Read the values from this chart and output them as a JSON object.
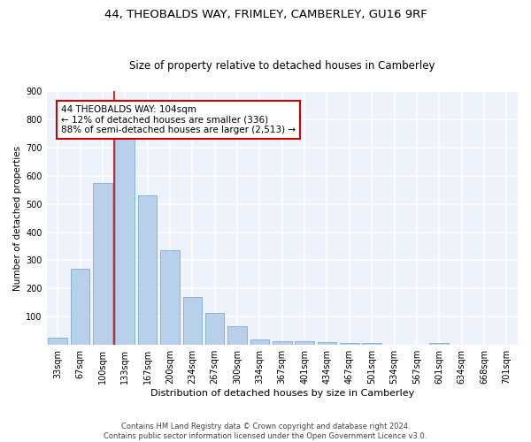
{
  "title1": "44, THEOBALDS WAY, FRIMLEY, CAMBERLEY, GU16 9RF",
  "title2": "Size of property relative to detached houses in Camberley",
  "xlabel": "Distribution of detached houses by size in Camberley",
  "ylabel": "Number of detached properties",
  "footnote1": "Contains HM Land Registry data © Crown copyright and database right 2024.",
  "footnote2": "Contains public sector information licensed under the Open Government Licence v3.0.",
  "categories": [
    "33sqm",
    "67sqm",
    "100sqm",
    "133sqm",
    "167sqm",
    "200sqm",
    "234sqm",
    "267sqm",
    "300sqm",
    "334sqm",
    "367sqm",
    "401sqm",
    "434sqm",
    "467sqm",
    "501sqm",
    "534sqm",
    "567sqm",
    "601sqm",
    "634sqm",
    "668sqm",
    "701sqm"
  ],
  "values": [
    25,
    270,
    575,
    735,
    530,
    335,
    170,
    115,
    68,
    20,
    12,
    13,
    10,
    8,
    6,
    0,
    0,
    7,
    0,
    0,
    0
  ],
  "bar_color": "#b8d0ea",
  "bar_edge_color": "#7aadd4",
  "subject_line_color": "#cc0000",
  "annotation_text": "44 THEOBALDS WAY: 104sqm\n← 12% of detached houses are smaller (336)\n88% of semi-detached houses are larger (2,513) →",
  "annotation_box_color": "#ffffff",
  "annotation_box_edge": "#cc0000",
  "ylim": [
    0,
    900
  ],
  "yticks": [
    0,
    100,
    200,
    300,
    400,
    500,
    600,
    700,
    800,
    900
  ],
  "bg_color": "#eef2fb",
  "grid_color": "#ffffff",
  "title1_fontsize": 9.5,
  "title2_fontsize": 8.5,
  "xlabel_fontsize": 8,
  "ylabel_fontsize": 7.5,
  "tick_fontsize": 7,
  "annotation_fontsize": 7.5,
  "footnote_fontsize": 6
}
